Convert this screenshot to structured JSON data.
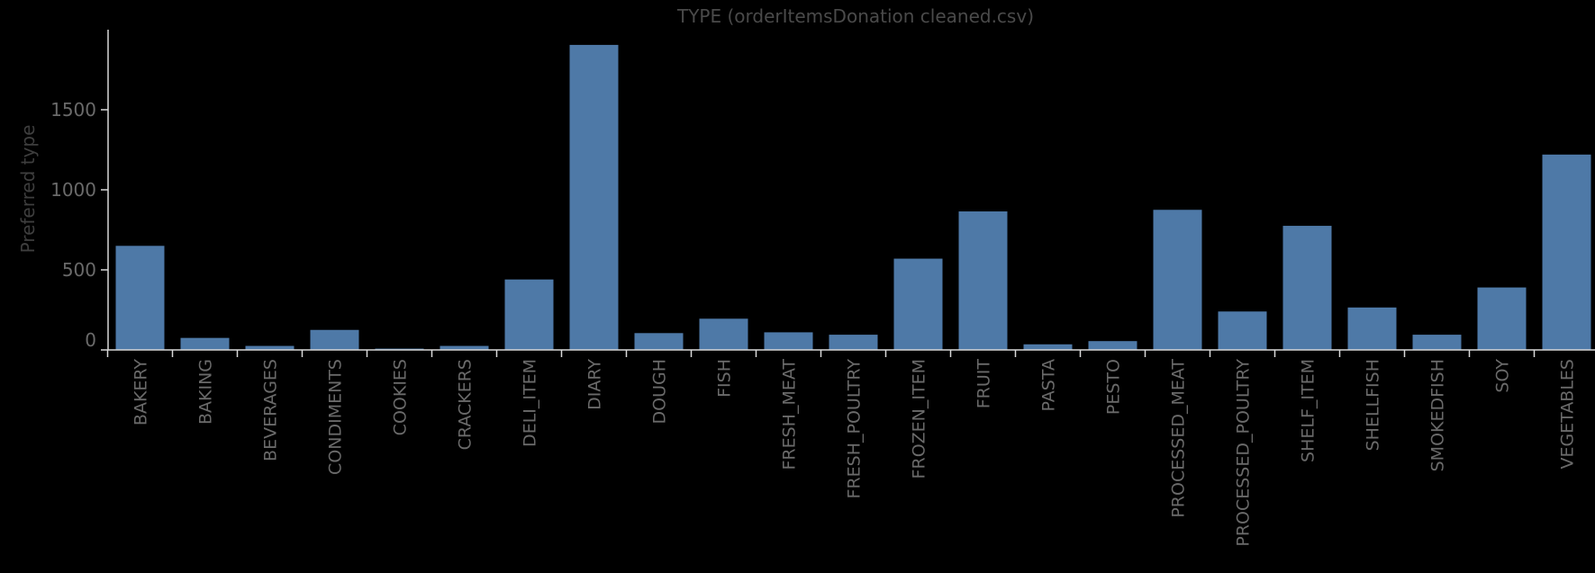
{
  "chart_data": {
    "type": "bar",
    "title": "TYPE (orderItemsDonation cleaned.csv)",
    "xlabel": "",
    "ylabel": "Preferred type",
    "ylim": [
      0,
      2000
    ],
    "yticks": [
      0,
      500,
      1000,
      1500
    ],
    "grid": false,
    "bar_color": "#4e79a7",
    "categories": [
      "BAKERY",
      "BAKING",
      "BEVERAGES",
      "CONDIMENTS",
      "COOKIES",
      "CRACKERS",
      "DELI_ITEM",
      "DIARY",
      "DOUGH",
      "FISH",
      "FRESH_MEAT",
      "FRESH_POULTRY",
      "FROZEN_ITEM",
      "FRUIT",
      "PASTA",
      "PESTO",
      "PROCESSED_MEAT",
      "PROCESSED_POULTRY",
      "SHELF_ITEM",
      "SHELLFISH",
      "SMOKEDFISH",
      "SOY",
      "VEGETABLES"
    ],
    "values": [
      650,
      75,
      25,
      125,
      8,
      25,
      440,
      1905,
      105,
      195,
      110,
      95,
      570,
      865,
      35,
      55,
      875,
      240,
      775,
      265,
      95,
      390,
      1220
    ]
  }
}
